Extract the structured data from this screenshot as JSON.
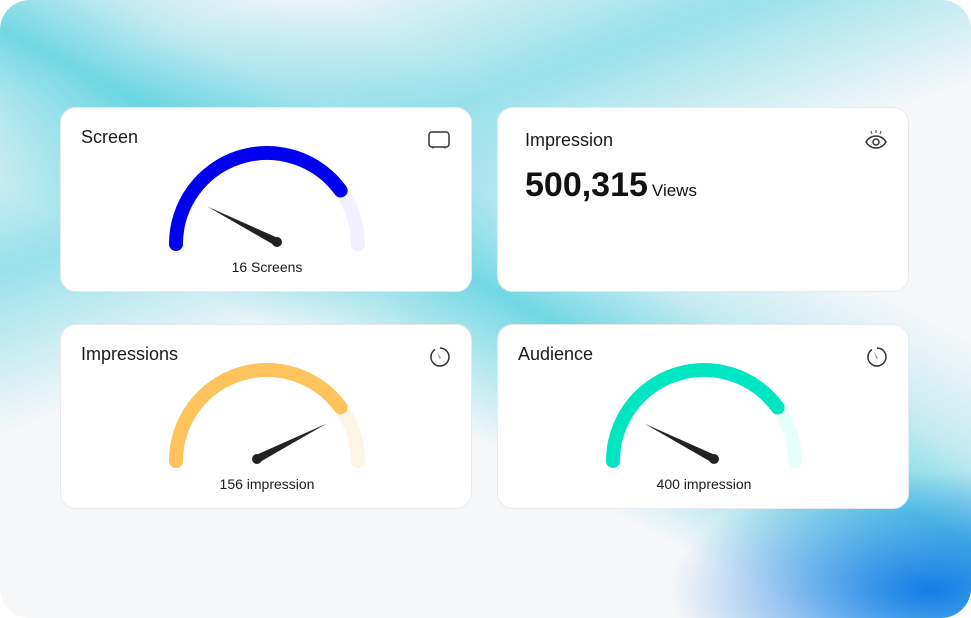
{
  "cards": [
    {
      "title": "Screen",
      "icon": "monitor-icon",
      "caption": "16 Screens",
      "progress": 0.8,
      "needle": 0.15,
      "color": "#0000ee",
      "track": "#f0f0ff"
    },
    {
      "title": "Impression",
      "icon": "eye-icon",
      "value": "500,315",
      "unit": "Views"
    },
    {
      "title": "Impressions",
      "icon": "gauge-icon",
      "caption": "156 impression",
      "progress": 0.8,
      "needle": 0.85,
      "color": "#ffc35e",
      "track": "#fff5e6"
    },
    {
      "title": "Audience",
      "icon": "gauge-icon",
      "caption": "400 impression",
      "progress": 0.8,
      "needle": 0.15,
      "color": "#00e6c3",
      "track": "#e6fffa"
    }
  ]
}
